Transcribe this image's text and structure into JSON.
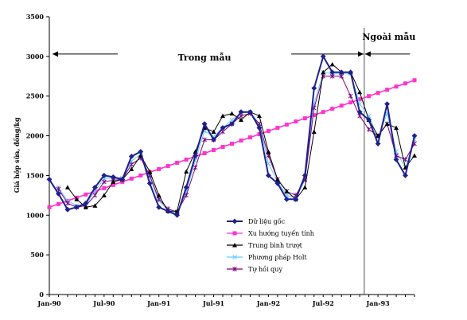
{
  "chart_data": {
    "type": "line",
    "title": "",
    "ylabel": "Giá hộp sữa, đồng/kg",
    "xlabel": "",
    "ylim": [
      0,
      3500
    ],
    "yticks": [
      0,
      500,
      1000,
      1500,
      2000,
      2500,
      3000,
      3500
    ],
    "xlim": [
      0,
      39
    ],
    "xticks": [
      {
        "pos": 0,
        "label": "Jan-90"
      },
      {
        "pos": 6,
        "label": "Jul-90"
      },
      {
        "pos": 12,
        "label": "Jan-91"
      },
      {
        "pos": 18,
        "label": "Jul-91"
      },
      {
        "pos": 24,
        "label": "Jan-92"
      },
      {
        "pos": 30,
        "label": "Jul-92"
      },
      {
        "pos": 36,
        "label": "Jan-93"
      }
    ],
    "grid": false,
    "legend_position": "bottom-center",
    "regions": {
      "in_sample": "Trong mẫu",
      "out_sample": "Ngoài mẫu",
      "divider_x": 34.5
    },
    "series": [
      {
        "name": "Dữ liệu gốc",
        "color": "#1f1f8f",
        "marker": "diamond",
        "x": [
          0,
          1,
          2,
          3,
          4,
          5,
          6,
          7,
          8,
          9,
          10,
          11,
          12,
          13,
          14,
          15,
          16,
          17,
          18,
          19,
          20,
          21,
          22,
          23,
          24,
          25,
          26,
          27,
          28,
          29,
          30,
          31,
          32,
          33,
          34,
          35,
          36,
          37,
          38,
          39,
          40
        ],
        "values": [
          1450,
          1270,
          1070,
          1100,
          1150,
          1350,
          1500,
          1480,
          1450,
          1740,
          1800,
          1400,
          1100,
          1050,
          1000,
          1350,
          1750,
          2150,
          1950,
          2100,
          2150,
          2300,
          2300,
          2100,
          1500,
          1400,
          1200,
          1200,
          1500,
          2600,
          3000,
          2800,
          2800,
          2800,
          2300,
          2200,
          1900,
          2400,
          1700,
          1500,
          2000
        ]
      },
      {
        "name": "Xu hướng tuyến tính",
        "color": "#ff33cc",
        "marker": "square",
        "x": [
          0,
          1,
          2,
          3,
          4,
          5,
          6,
          7,
          8,
          9,
          10,
          11,
          12,
          13,
          14,
          15,
          16,
          17,
          18,
          19,
          20,
          21,
          22,
          23,
          24,
          25,
          26,
          27,
          28,
          29,
          30,
          31,
          32,
          33,
          34,
          35,
          36,
          37,
          38,
          39,
          40
        ],
        "values": [
          1100,
          1140,
          1180,
          1220,
          1260,
          1300,
          1340,
          1380,
          1420,
          1460,
          1500,
          1540,
          1580,
          1620,
          1660,
          1700,
          1740,
          1780,
          1820,
          1860,
          1900,
          1940,
          1980,
          2020,
          2060,
          2100,
          2140,
          2180,
          2220,
          2260,
          2300,
          2340,
          2380,
          2420,
          2460,
          2500,
          2540,
          2580,
          2620,
          2660,
          2700
        ]
      },
      {
        "name": "Trung bình trượt",
        "color": "#000000",
        "marker": "triangle",
        "x": [
          2,
          3,
          4,
          5,
          6,
          7,
          8,
          9,
          10,
          11,
          12,
          13,
          14,
          15,
          16,
          17,
          18,
          19,
          20,
          21,
          22,
          23,
          24,
          25,
          26,
          27,
          28,
          29,
          30,
          31,
          32,
          33,
          34,
          35,
          36,
          37,
          38,
          39,
          40
        ],
        "values": [
          1350,
          1200,
          1100,
          1120,
          1250,
          1420,
          1450,
          1580,
          1750,
          1550,
          1250,
          1050,
          1050,
          1550,
          1800,
          2100,
          2050,
          2250,
          2280,
          2200,
          2300,
          2250,
          1800,
          1450,
          1300,
          1200,
          1350,
          2050,
          2800,
          2900,
          2800,
          2800,
          2550,
          2200,
          2000,
          2150,
          2100,
          1600,
          1750
        ]
      },
      {
        "name": "Phương pháp Holt",
        "color": "#66ccff",
        "marker": "x",
        "x": [
          1,
          2,
          3,
          4,
          5,
          6,
          7,
          8,
          9,
          10,
          11,
          12,
          13,
          14,
          15,
          16,
          17,
          18,
          19,
          20,
          21,
          22,
          23,
          24,
          25,
          26,
          27,
          28,
          29,
          30,
          31,
          32,
          33,
          34,
          35,
          36,
          37,
          38,
          39,
          40
        ],
        "values": [
          1350,
          1180,
          1120,
          1130,
          1300,
          1460,
          1470,
          1470,
          1680,
          1770,
          1480,
          1180,
          1060,
          1020,
          1300,
          1690,
          2060,
          1990,
          2100,
          2200,
          2290,
          2300,
          2150,
          1650,
          1420,
          1250,
          1220,
          1440,
          2400,
          2800,
          2780,
          2780,
          2780,
          2400,
          2250,
          1980,
          2280,
          1800,
          1600,
          1950
        ]
      },
      {
        "name": "Tự hồi quy",
        "color": "#800080",
        "marker": "star",
        "x": [
          1,
          2,
          3,
          4,
          5,
          6,
          7,
          8,
          9,
          10,
          11,
          12,
          13,
          14,
          15,
          16,
          17,
          18,
          19,
          20,
          21,
          22,
          23,
          24,
          25,
          26,
          27,
          28,
          29,
          30,
          31,
          32,
          33,
          34,
          35,
          36,
          37,
          38,
          39,
          40
        ],
        "values": [
          1330,
          1150,
          1100,
          1120,
          1250,
          1420,
          1440,
          1450,
          1640,
          1720,
          1500,
          1200,
          1080,
          1040,
          1250,
          1600,
          1950,
          1950,
          2050,
          2150,
          2250,
          2280,
          2150,
          1750,
          1450,
          1300,
          1250,
          1450,
          2350,
          2750,
          2750,
          2750,
          2500,
          2250,
          2080,
          2000,
          2150,
          1750,
          1700,
          1900
        ]
      }
    ]
  }
}
